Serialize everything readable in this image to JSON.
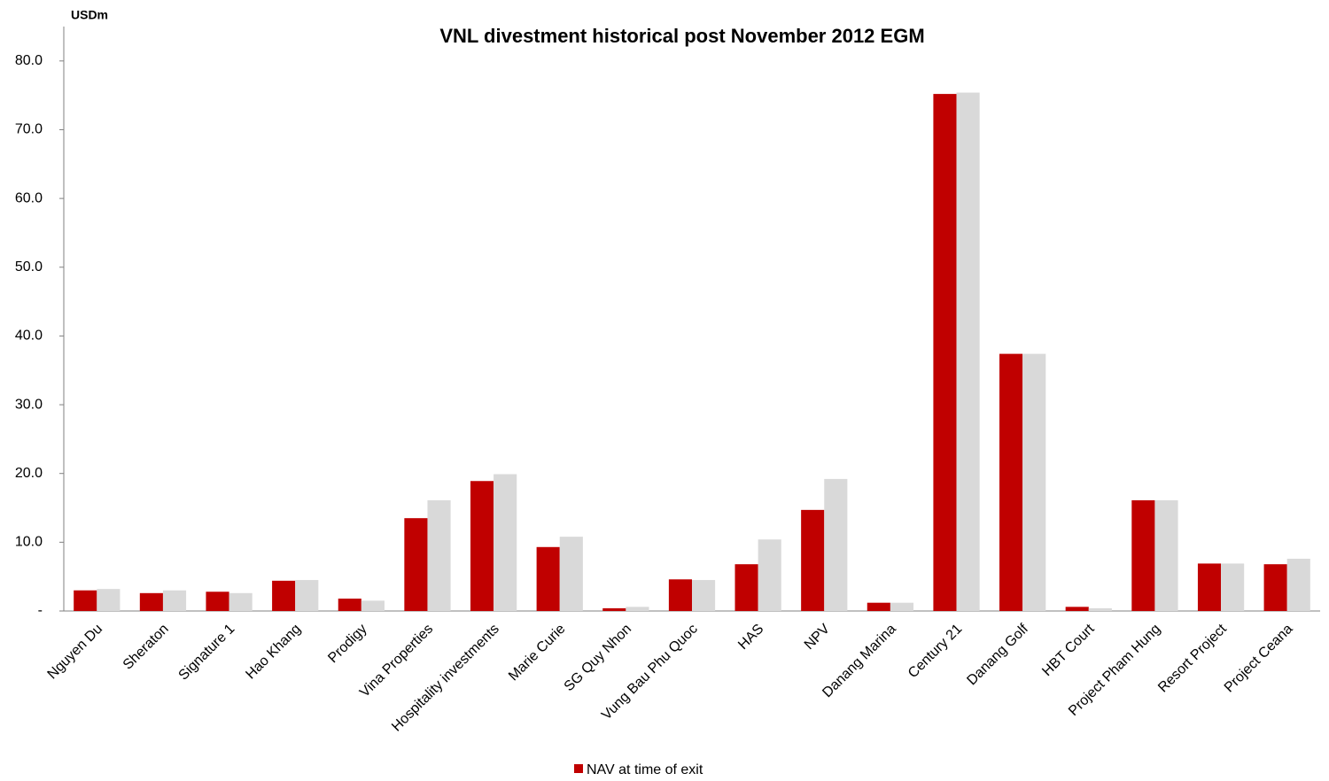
{
  "chart_data": {
    "type": "bar",
    "title": "VNL divestment historical post November 2012  EGM",
    "y_label": "USDm",
    "categories": [
      "Nguyen Du",
      "Sheraton",
      "Signature 1",
      "Hao Khang",
      "Prodigy",
      "Vina Properties",
      "Hospitality investments",
      "Marie Curie",
      "SG Quy Nhon",
      "Vung Bau Phu Quoc",
      "HAS",
      "NPV",
      "Danang Marina",
      "Century 21",
      "Danang Golf",
      "HBT Court",
      "Project Pham Hung",
      "Resort Project",
      "Project Ceana"
    ],
    "series": [
      {
        "name": "NAV at time of exit",
        "color": "#c00000",
        "values": [
          3.0,
          2.6,
          2.8,
          4.4,
          1.8,
          13.5,
          18.9,
          9.3,
          0.4,
          4.6,
          6.8,
          14.7,
          1.2,
          75.2,
          37.4,
          0.6,
          16.1,
          6.9,
          6.8
        ]
      },
      {
        "color": "#d9d9d9",
        "values": [
          3.2,
          3.0,
          2.6,
          4.5,
          1.5,
          16.1,
          19.9,
          10.8,
          0.6,
          4.5,
          10.4,
          19.2,
          1.2,
          75.4,
          37.4,
          0.4,
          16.1,
          6.9,
          7.6
        ]
      }
    ],
    "ylim": [
      0,
      85
    ],
    "yticks": [
      {
        "value": 0,
        "label": "-"
      },
      {
        "value": 10,
        "label": "10.0"
      },
      {
        "value": 20,
        "label": "20.0"
      },
      {
        "value": 30,
        "label": "30.0"
      },
      {
        "value": 40,
        "label": "40.0"
      },
      {
        "value": 50,
        "label": "50.0"
      },
      {
        "value": 60,
        "label": "60.0"
      },
      {
        "value": 70,
        "label": "70.0"
      },
      {
        "value": 80,
        "label": "80.0"
      }
    ],
    "legend": "bottom"
  }
}
